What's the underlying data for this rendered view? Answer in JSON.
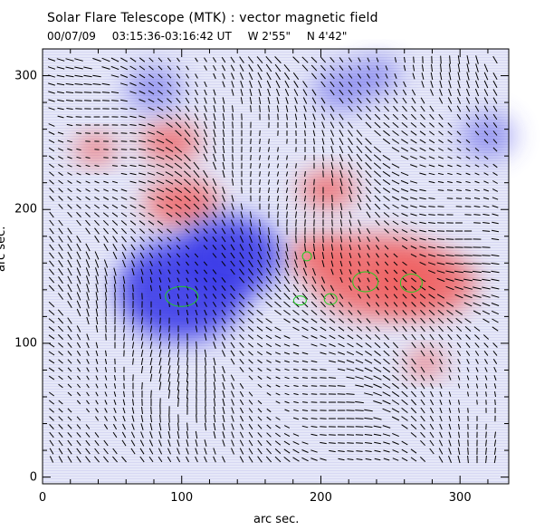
{
  "header": {
    "title": "Solar Flare Telescope (MTK) : vector magnetic field",
    "date": "00/07/09",
    "time_range": "03:15:36-03:16:42 UT",
    "west": "W 2'55\"",
    "north": "N 4'42\""
  },
  "axes": {
    "xlabel": "arc sec.",
    "ylabel": "arc sec.",
    "xlim": [
      0,
      335
    ],
    "ylim": [
      -5,
      320
    ],
    "xticks": [
      0,
      100,
      200,
      300
    ],
    "yticks": [
      0,
      100,
      200,
      300
    ]
  },
  "colors": {
    "positive": "#f06060",
    "negative": "#3a3ae8",
    "vector": "#000000",
    "contour": "#22cc22"
  },
  "chart_data": {
    "type": "heatmap",
    "xlabel": "arc sec.",
    "ylabel": "arc sec.",
    "xlim": [
      0,
      335
    ],
    "ylim": [
      -5,
      320
    ],
    "positive_regions": [
      {
        "x": 240,
        "y": 150
      },
      {
        "x": 275,
        "y": 145
      },
      {
        "x": 200,
        "y": 165
      },
      {
        "x": 100,
        "y": 205
      },
      {
        "x": 205,
        "y": 215
      },
      {
        "x": 38,
        "y": 245
      },
      {
        "x": 92,
        "y": 250
      },
      {
        "x": 275,
        "y": 85
      }
    ],
    "negative_regions": [
      {
        "x": 100,
        "y": 140
      },
      {
        "x": 135,
        "y": 165
      },
      {
        "x": 215,
        "y": 290
      },
      {
        "x": 240,
        "y": 300
      },
      {
        "x": 320,
        "y": 255
      },
      {
        "x": 80,
        "y": 290
      }
    ],
    "contours": [
      {
        "x": 100,
        "y": 135
      },
      {
        "x": 190,
        "y": 165
      },
      {
        "x": 185,
        "y": 132
      },
      {
        "x": 207,
        "y": 133
      },
      {
        "x": 232,
        "y": 146
      },
      {
        "x": 265,
        "y": 145
      }
    ]
  }
}
